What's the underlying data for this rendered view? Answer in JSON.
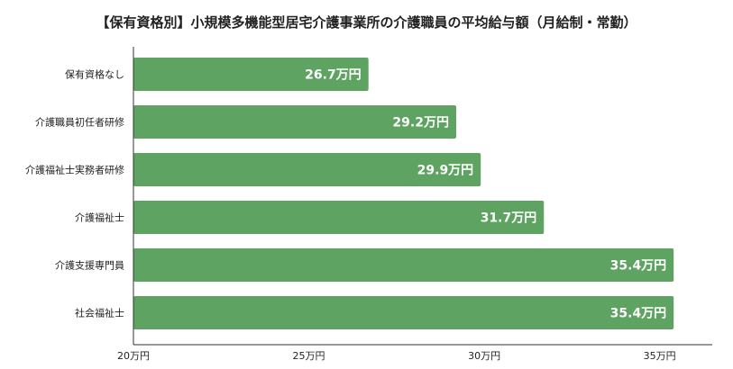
{
  "chart_data": {
    "type": "bar",
    "orientation": "horizontal",
    "title": "【保有資格別】小規模多機能型居宅介護事業所の介護職員の平均給与額（月給制・常勤）",
    "categories": [
      "保有資格なし",
      "介護職員初任者研修",
      "介護福祉士実務者研修",
      "介護福祉士",
      "介護支援専門員",
      "社会福祉士"
    ],
    "values": [
      26.7,
      29.2,
      29.9,
      31.7,
      35.4,
      35.4
    ],
    "data_labels": [
      "26.7万円",
      "29.2万円",
      "29.9万円",
      "31.7万円",
      "35.4万円",
      "35.4万円"
    ],
    "xlim": [
      20,
      36.5
    ],
    "x_ticks": [
      20,
      25,
      30,
      35
    ],
    "x_tick_labels": [
      "20万円",
      "25万円",
      "30万円",
      "35万円"
    ],
    "xlabel": "",
    "ylabel": "",
    "grid": false,
    "bar_color": "#5ea362",
    "label_color": "#ffffff"
  }
}
